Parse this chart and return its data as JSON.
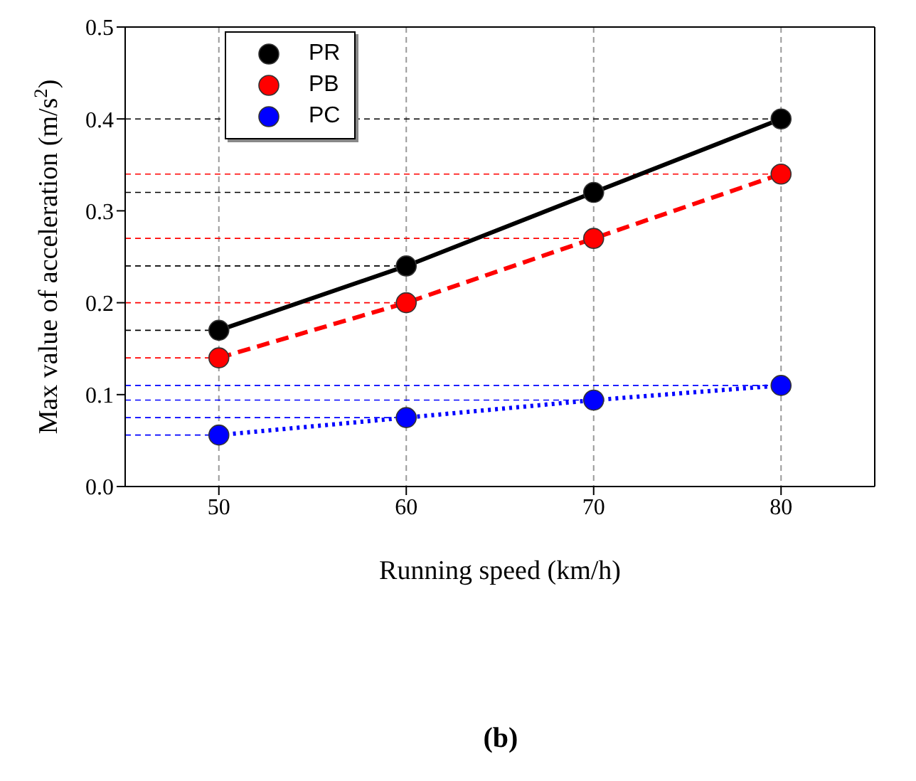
{
  "chart_data": {
    "type": "line",
    "xlabel": "Running speed (km/h)",
    "ylabel": "Max value of acceleration (m/s$^{2}$)",
    "annotations": [
      "(b)"
    ],
    "x": [
      50,
      60,
      70,
      80
    ],
    "series": [
      {
        "name": "PR",
        "color": "#000000",
        "values": [
          0.17,
          0.24,
          0.32,
          0.4
        ],
        "line_style": "solid"
      },
      {
        "name": "PB",
        "color": "#ff0000",
        "values": [
          0.14,
          0.2,
          0.27,
          0.34
        ],
        "line_style": "dashed"
      },
      {
        "name": "PC",
        "color": "#0000ff",
        "values": [
          0.056,
          0.075,
          0.094,
          0.11
        ],
        "line_style": "dotted"
      }
    ],
    "xlim": [
      45,
      85
    ],
    "xticks": [
      50,
      60,
      70,
      80
    ],
    "ylim": [
      0,
      0.5
    ],
    "yticks": [
      {
        "value": 0,
        "label": "0.0"
      },
      {
        "value": 0.1,
        "label": "0.1"
      },
      {
        "value": 0.2,
        "label": "0.2"
      },
      {
        "value": 0.3,
        "label": "0.3"
      },
      {
        "value": 0.4,
        "label": "0.4"
      },
      {
        "value": 0.5,
        "label": "0.5"
      }
    ],
    "ref_lines": [
      {
        "axis": "y",
        "value": 0.17,
        "color": "#000000",
        "line_style": "dashed"
      },
      {
        "axis": "y",
        "value": 0.24,
        "color": "#000000",
        "line_style": "dashed"
      },
      {
        "axis": "y",
        "value": 0.32,
        "color": "#000000",
        "line_style": "dashed"
      },
      {
        "axis": "y",
        "value": 0.4,
        "color": "#000000",
        "line_style": "dashed"
      },
      {
        "axis": "y",
        "value": 0.14,
        "color": "#ff0000",
        "line_style": "dashed"
      },
      {
        "axis": "y",
        "value": 0.2,
        "color": "#ff0000",
        "line_style": "dashed"
      },
      {
        "axis": "y",
        "value": 0.27,
        "color": "#ff0000",
        "line_style": "dashed"
      },
      {
        "axis": "y",
        "value": 0.34,
        "color": "#ff0000",
        "line_style": "dashed"
      },
      {
        "axis": "y",
        "value": 0.056,
        "color": "#0000ff",
        "line_style": "dashed"
      },
      {
        "axis": "y",
        "value": 0.075,
        "color": "#0000ff",
        "line_style": "dashed"
      },
      {
        "axis": "y",
        "value": 0.094,
        "color": "#0000ff",
        "line_style": "dashed"
      },
      {
        "axis": "y",
        "value": 0.11,
        "color": "#0000ff",
        "line_style": "dashed"
      }
    ],
    "grid": "x",
    "legend": "top left",
    "marker": "circle"
  }
}
